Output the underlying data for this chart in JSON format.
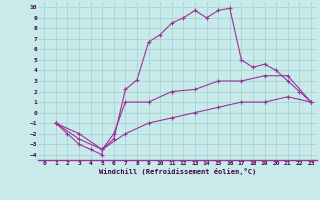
{
  "xlabel": "Windchill (Refroidissement éolien,°C)",
  "background_color": "#c8eaea",
  "grid_color": "#a8d4d4",
  "line_color": "#993399",
  "xlim": [
    -0.5,
    23.5
  ],
  "ylim": [
    -4.5,
    10.5
  ],
  "xticks": [
    0,
    1,
    2,
    3,
    4,
    5,
    6,
    7,
    8,
    9,
    10,
    11,
    12,
    13,
    14,
    15,
    16,
    17,
    18,
    19,
    20,
    21,
    22,
    23
  ],
  "yticks": [
    -4,
    -3,
    -2,
    -1,
    0,
    1,
    2,
    3,
    4,
    5,
    6,
    7,
    8,
    9,
    10
  ],
  "curve1_x": [
    1,
    2,
    3,
    4,
    5,
    5,
    6,
    7,
    8,
    9,
    10,
    11,
    12,
    13,
    14,
    15,
    16,
    17,
    18,
    19,
    20,
    21,
    22,
    23
  ],
  "curve1_y": [
    -1,
    -2,
    -3,
    -3.5,
    -4,
    -3.5,
    -2.5,
    2.2,
    3.1,
    6.7,
    7.4,
    8.5,
    9.0,
    9.7,
    9.0,
    9.7,
    9.9,
    5.0,
    4.3,
    4.6,
    4.0,
    3.0,
    2.0,
    1.0
  ],
  "curve2_x": [
    1,
    3,
    5,
    6,
    7,
    9,
    11,
    13,
    15,
    17,
    19,
    21,
    23
  ],
  "curve2_y": [
    -1,
    -2,
    -3.5,
    -2.0,
    1.0,
    1.0,
    2.0,
    2.2,
    3.0,
    3.0,
    3.5,
    3.5,
    1.0
  ],
  "curve3_x": [
    1,
    3,
    5,
    7,
    9,
    11,
    13,
    15,
    17,
    19,
    21,
    23
  ],
  "curve3_y": [
    -1,
    -2.5,
    -3.5,
    -2.0,
    -1.0,
    -0.5,
    0.0,
    0.5,
    1.0,
    1.0,
    1.5,
    1.0
  ]
}
